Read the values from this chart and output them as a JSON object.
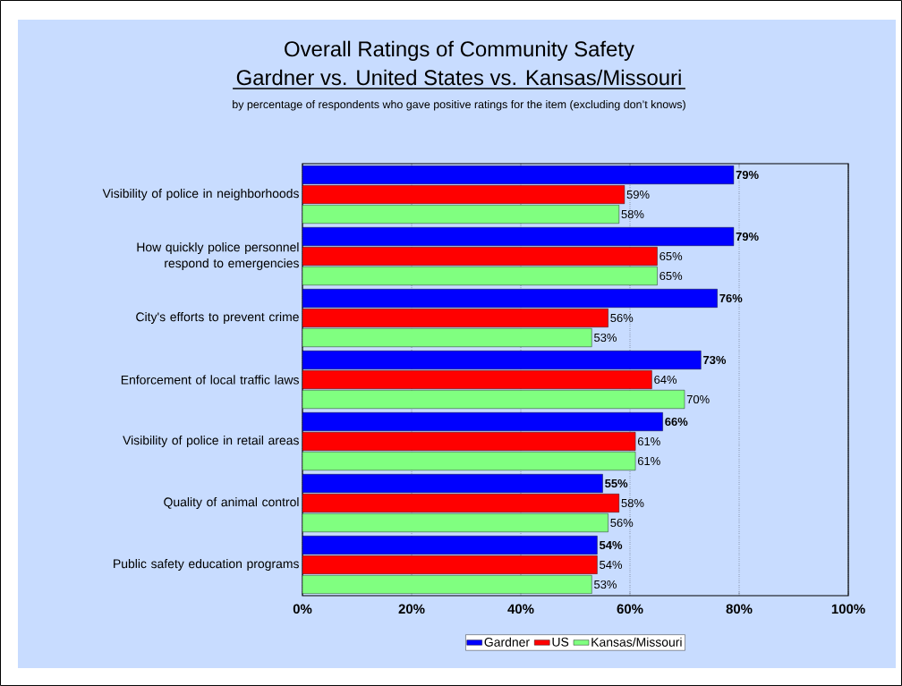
{
  "chart_data": {
    "type": "bar",
    "orientation": "horizontal",
    "title": "Overall Ratings of Community Safety",
    "subtitle": "Gardner vs. United States vs. Kansas/Missouri",
    "annotations": [
      "by percentage of respondents who gave positive ratings for the item (excluding don’t knows)"
    ],
    "categories": [
      "Visibility of police in neighborhoods",
      "How quickly police personnel respond to emergencies",
      "City's efforts to prevent crime",
      "Enforcement of local traffic laws",
      "Visibility of police in retail areas",
      "Quality of animal control",
      "Public safety education programs"
    ],
    "series": [
      {
        "name": "Gardner",
        "color": "#0000ff",
        "values": [
          79,
          79,
          76,
          73,
          66,
          55,
          54
        ],
        "value_labels": [
          "79%",
          "79%",
          "76%",
          "73%",
          "66%",
          "55%",
          "54%"
        ]
      },
      {
        "name": "US",
        "color": "#ff0000",
        "values": [
          59,
          65,
          56,
          64,
          61,
          58,
          54
        ],
        "value_labels": [
          "59%",
          "65%",
          "56%",
          "64%",
          "61%",
          "58%",
          "54%"
        ]
      },
      {
        "name": "Kansas/Missouri",
        "color": "#80ff80",
        "values": [
          58,
          65,
          53,
          70,
          61,
          56,
          53
        ],
        "value_labels": [
          "58%",
          "65%",
          "53%",
          "70%",
          "61%",
          "56%",
          "53%"
        ]
      }
    ],
    "xlim": [
      0,
      100
    ],
    "xticks": [
      {
        "value": 0,
        "label": "0%"
      },
      {
        "value": 20,
        "label": "20%"
      },
      {
        "value": 40,
        "label": "40%"
      },
      {
        "value": 60,
        "label": "60%"
      },
      {
        "value": 80,
        "label": "80%"
      },
      {
        "value": 100,
        "label": "100%"
      }
    ],
    "grid": "x",
    "legend": "bottom"
  }
}
